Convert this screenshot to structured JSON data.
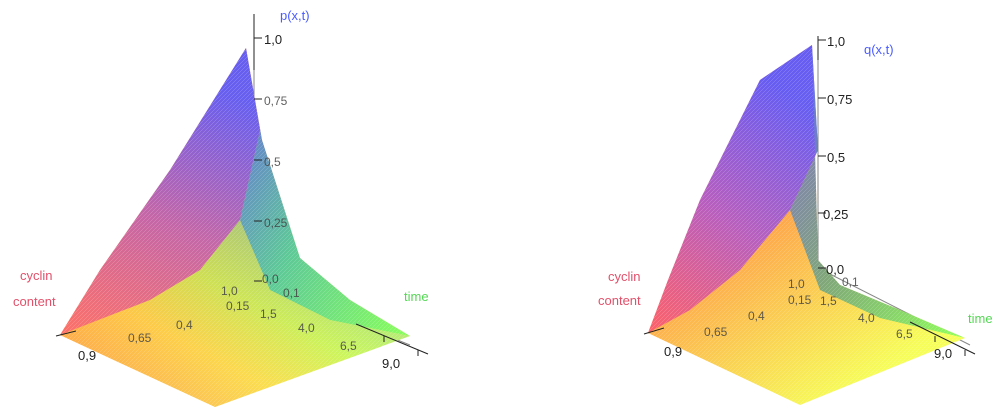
{
  "chart_data": [
    {
      "type": "surface",
      "zlabel": "p(x,t)",
      "xlabel": [
        "cyclin",
        "content"
      ],
      "ylabel": "time",
      "z_ticks": [
        "1,0",
        "0,75",
        "0,5",
        "0,25",
        "0,0"
      ],
      "x_ticks": [
        "0,9",
        "0,65",
        "0,4",
        "0,15",
        "1,0"
      ],
      "t_ticks": [
        "0,1",
        "1,5",
        "4,0",
        "6,5",
        "9,0"
      ],
      "xlim": [
        -0.1,
        1.0
      ],
      "tlim": [
        0,
        9.0
      ],
      "zlim": [
        0,
        1.0
      ],
      "colorscale": [
        "#ff5a64",
        "#ffff66",
        "#66ff66",
        "#6666ff"
      ],
      "surface_peak": {
        "x": 1.0,
        "t": 0.0,
        "z": 1.0
      }
    },
    {
      "type": "surface",
      "zlabel": "q(x,t)",
      "xlabel": [
        "cyclin",
        "content"
      ],
      "ylabel": "time",
      "z_ticks": [
        "1,0",
        "0,75",
        "0,5",
        "0,25",
        "0,0"
      ],
      "x_ticks": [
        "0,9",
        "0,65",
        "0,4",
        "0,15",
        "1,0"
      ],
      "t_ticks": [
        "0,1",
        "1,5",
        "4,0",
        "6,5",
        "9,0"
      ],
      "xlim": [
        -0.1,
        1.0
      ],
      "tlim": [
        0,
        9.0
      ],
      "zlim": [
        0,
        1.0
      ],
      "colorscale": [
        "#ff5a64",
        "#ffff66",
        "#66ff66",
        "#6666ff"
      ],
      "surface_peak": {
        "x": 1.0,
        "t": 0.0,
        "z": 1.0
      }
    }
  ]
}
